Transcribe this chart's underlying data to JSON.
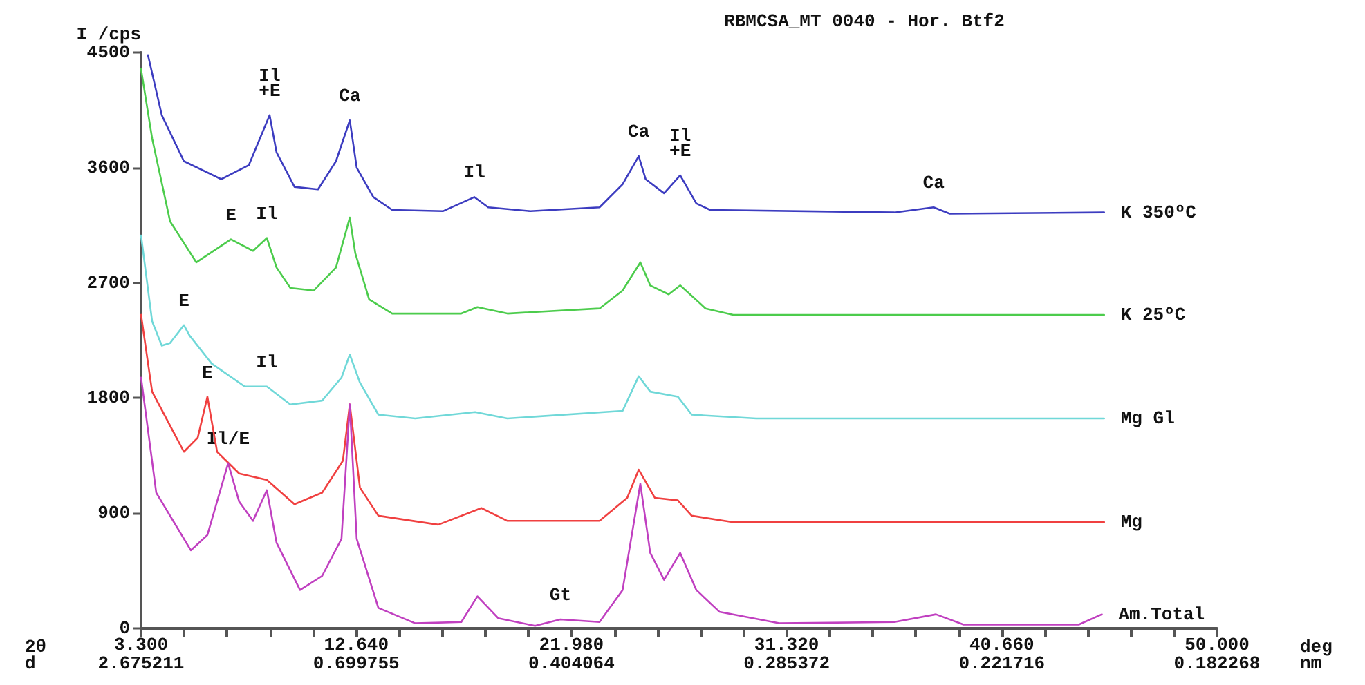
{
  "chart_data": {
    "type": "line",
    "title": "RBMCSA_MT 0040 - Hor. Btf2",
    "ylabel": "I /cps",
    "xlim": [
      3.3,
      50
    ],
    "ylim": [
      0,
      4500
    ],
    "xticks": [
      {
        "value": 3.3,
        "label": "3.300"
      },
      {
        "value": 5.168,
        "label": null
      },
      {
        "value": 7.036,
        "label": null
      },
      {
        "value": 8.904,
        "label": null
      },
      {
        "value": 10.772,
        "label": null
      },
      {
        "value": 12.64,
        "label": "12.640"
      },
      {
        "value": 14.508,
        "label": null
      },
      {
        "value": 16.376,
        "label": null
      },
      {
        "value": 18.244,
        "label": null
      },
      {
        "value": 20.112,
        "label": null
      },
      {
        "value": 21.98,
        "label": "21.980"
      },
      {
        "value": 23.848,
        "label": null
      },
      {
        "value": 25.716,
        "label": null
      },
      {
        "value": 27.584,
        "label": null
      },
      {
        "value": 29.452,
        "label": null
      },
      {
        "value": 31.32,
        "label": "31.320"
      },
      {
        "value": 33.188,
        "label": null
      },
      {
        "value": 35.056,
        "label": null
      },
      {
        "value": 36.924,
        "label": null
      },
      {
        "value": 38.792,
        "label": null
      },
      {
        "value": 40.66,
        "label": "40.660"
      },
      {
        "value": 42.528,
        "label": null
      },
      {
        "value": 44.396,
        "label": null
      },
      {
        "value": 46.264,
        "label": null
      },
      {
        "value": 48.132,
        "label": null
      },
      {
        "value": 50,
        "label": "50.000"
      }
    ],
    "yticks": [
      0,
      900,
      1800,
      2700,
      3600,
      4500
    ],
    "grid": false,
    "series": [
      {
        "name": "K 350ºC",
        "color": "#3c3cc0",
        "x": [
          3.6,
          4.2,
          5.16,
          6.78,
          7.98,
          8.88,
          9.18,
          9.96,
          10.98,
          11.76,
          12.36,
          12.66,
          13.38,
          14.2,
          16.4,
          17.77,
          18.37,
          20.2,
          23.2,
          24.2,
          24.9,
          25.2,
          26.0,
          26.7,
          27.4,
          28.0,
          36.0,
          37.7,
          38.4,
          45.1
        ],
        "values": [
          4480,
          4010,
          3650,
          3510,
          3620,
          4010,
          3720,
          3450,
          3430,
          3650,
          3970,
          3600,
          3370,
          3270,
          3260,
          3370,
          3290,
          3260,
          3290,
          3470,
          3690,
          3510,
          3400,
          3540,
          3320,
          3270,
          3250,
          3290,
          3240,
          3250
        ]
      },
      {
        "name": "K 25ºC",
        "color": "#4ccc4c",
        "x": [
          3.3,
          3.78,
          4.56,
          5.7,
          7.2,
          8.16,
          8.76,
          9.18,
          9.78,
          10.8,
          11.76,
          12.36,
          12.6,
          13.2,
          14.2,
          17.2,
          17.9,
          19.2,
          23.2,
          24.2,
          24.97,
          25.4,
          26.2,
          26.7,
          27.8,
          29.0,
          45.1
        ],
        "values": [
          4370,
          3830,
          3180,
          2860,
          3040,
          2950,
          3050,
          2820,
          2660,
          2640,
          2820,
          3210,
          2930,
          2570,
          2460,
          2460,
          2510,
          2460,
          2500,
          2640,
          2860,
          2680,
          2610,
          2680,
          2500,
          2450,
          2450
        ]
      },
      {
        "name": "Mg Gl",
        "color": "#70d8d8",
        "x": [
          3.3,
          3.78,
          4.2,
          4.56,
          5.16,
          5.4,
          6.36,
          7.8,
          8.76,
          9.78,
          11.16,
          12.0,
          12.36,
          12.8,
          13.6,
          15.2,
          17.8,
          19.2,
          24.2,
          24.9,
          25.4,
          26.6,
          27.2,
          30.0,
          45.1
        ],
        "values": [
          3070,
          2400,
          2210,
          2230,
          2370,
          2290,
          2070,
          1890,
          1890,
          1750,
          1780,
          1960,
          2140,
          1920,
          1670,
          1640,
          1690,
          1640,
          1700,
          1970,
          1850,
          1810,
          1670,
          1640,
          1640
        ]
      },
      {
        "name": "Mg",
        "color": "#f04040",
        "x": [
          3.3,
          3.78,
          5.16,
          5.76,
          6.18,
          6.6,
          7.56,
          8.76,
          9.96,
          11.16,
          12.06,
          12.36,
          12.8,
          13.6,
          16.2,
          18.07,
          19.2,
          23.2,
          24.4,
          24.9,
          25.6,
          26.6,
          27.2,
          29.0,
          45.1
        ],
        "values": [
          2450,
          1850,
          1380,
          1490,
          1810,
          1380,
          1210,
          1160,
          970,
          1060,
          1310,
          1750,
          1100,
          880,
          810,
          940,
          840,
          840,
          1020,
          1240,
          1020,
          1000,
          880,
          830,
          830
        ]
      },
      {
        "name": "Am.Total",
        "color": "#c040c0",
        "x": [
          3.3,
          3.96,
          5.46,
          6.18,
          7.08,
          7.56,
          8.16,
          8.76,
          9.18,
          10.2,
          11.16,
          12.0,
          12.36,
          12.66,
          13.6,
          15.2,
          17.2,
          17.9,
          18.8,
          20.4,
          21.5,
          23.2,
          24.2,
          24.97,
          25.4,
          26.0,
          26.7,
          27.4,
          28.4,
          31.0,
          36.0,
          37.8,
          39.0,
          44.0,
          45.0
        ],
        "values": [
          1960,
          1060,
          610,
          730,
          1290,
          990,
          840,
          1080,
          670,
          300,
          410,
          700,
          1750,
          700,
          160,
          40,
          50,
          250,
          80,
          20,
          70,
          50,
          300,
          1130,
          590,
          380,
          590,
          300,
          130,
          40,
          50,
          110,
          30,
          30,
          110
        ]
      }
    ],
    "annotations": [
      {
        "text": "Il\n+E",
        "x": 8.88,
        "y": 4010
      },
      {
        "text": "Ca",
        "x": 12.36,
        "y": 3970
      },
      {
        "text": "Il",
        "x": 17.77,
        "y": 3370
      },
      {
        "text": "Ca",
        "x": 24.9,
        "y": 3690
      },
      {
        "text": "Il\n+E",
        "x": 26.7,
        "y": 3540
      },
      {
        "text": "Ca",
        "x": 37.7,
        "y": 3290
      },
      {
        "text": "E",
        "x": 7.2,
        "y": 3040
      },
      {
        "text": "Il",
        "x": 8.76,
        "y": 3050
      },
      {
        "text": "E",
        "x": 5.16,
        "y": 2370
      },
      {
        "text": "Il",
        "x": 8.76,
        "y": 1890
      },
      {
        "text": "E",
        "x": 6.18,
        "y": 1810
      },
      {
        "text": "Il/E",
        "x": 7.08,
        "y": 1290
      },
      {
        "text": "Gt",
        "x": 21.5,
        "y": 70
      },
      "2θ",
      "d",
      "deg",
      "nm",
      "2.675211",
      "0.699755",
      "0.404064",
      "0.285372",
      "0.221716",
      "0.182268"
    ]
  }
}
